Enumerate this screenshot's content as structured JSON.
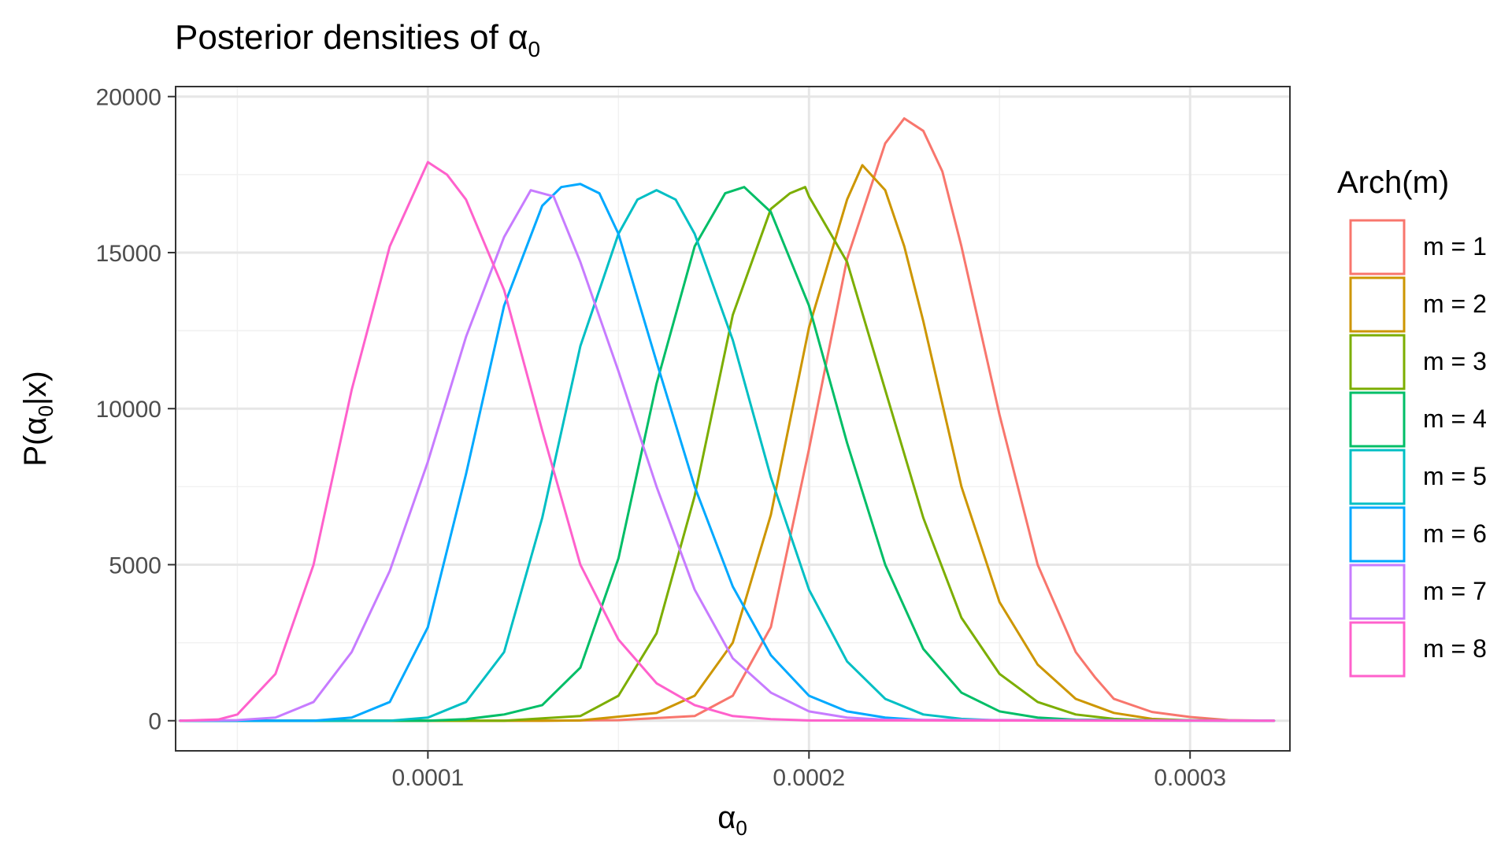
{
  "chart_data": {
    "type": "line",
    "title_main": "Posterior densities of ",
    "title_symbol": "α",
    "title_subscript": "0",
    "xlabel_symbol": "α",
    "xlabel_subscript": "0",
    "ylabel_prefix": "P(",
    "ylabel_symbol": "α",
    "ylabel_subscript": "0",
    "ylabel_suffix": "|x)",
    "xlim": [
      3.38e-05,
      0.0003262
    ],
    "ylim": [
      -965,
      20320
    ],
    "x_ticks": [
      {
        "value": 0.0001,
        "label": "0.0001"
      },
      {
        "value": 0.0002,
        "label": "0.0002"
      },
      {
        "value": 0.0003,
        "label": "0.0003"
      }
    ],
    "x_minor_ticks": [
      5e-05,
      0.00015,
      0.00025
    ],
    "y_ticks": [
      {
        "value": 0,
        "label": "0"
      },
      {
        "value": 5000,
        "label": "5000"
      },
      {
        "value": 10000,
        "label": "10000"
      },
      {
        "value": 15000,
        "label": "15000"
      },
      {
        "value": 20000,
        "label": "20000"
      }
    ],
    "y_minor_ticks": [
      2500,
      7500,
      12500,
      17500
    ],
    "grid": true,
    "legend": {
      "title": "Arch(m)",
      "position": "right"
    },
    "series": [
      {
        "name": "m = 1",
        "color": "#F8766D",
        "points": [
          [
            3.5e-05,
            0
          ],
          [
            0.00013,
            0
          ],
          [
            0.00015,
            20
          ],
          [
            0.00017,
            150
          ],
          [
            0.00018,
            800
          ],
          [
            0.00019,
            3000
          ],
          [
            0.0002,
            8700
          ],
          [
            0.00021,
            14800
          ],
          [
            0.00022,
            18500
          ],
          [
            0.000225,
            19300
          ],
          [
            0.00023,
            18900
          ],
          [
            0.000235,
            17600
          ],
          [
            0.00024,
            15200
          ],
          [
            0.00025,
            9800
          ],
          [
            0.00026,
            5000
          ],
          [
            0.00027,
            2200
          ],
          [
            0.000275,
            1400
          ],
          [
            0.00028,
            700
          ],
          [
            0.00029,
            280
          ],
          [
            0.0003,
            120
          ],
          [
            0.00031,
            20
          ],
          [
            0.000322,
            0
          ]
        ]
      },
      {
        "name": "m = 2",
        "color": "#CD9600",
        "points": [
          [
            3.5e-05,
            0
          ],
          [
            0.00013,
            0
          ],
          [
            0.00014,
            10
          ],
          [
            0.00016,
            250
          ],
          [
            0.00017,
            800
          ],
          [
            0.00018,
            2500
          ],
          [
            0.00019,
            6600
          ],
          [
            0.0002,
            12600
          ],
          [
            0.00021,
            16700
          ],
          [
            0.000214,
            17800
          ],
          [
            0.00022,
            17000
          ],
          [
            0.000225,
            15200
          ],
          [
            0.00023,
            12800
          ],
          [
            0.00024,
            7500
          ],
          [
            0.00025,
            3800
          ],
          [
            0.00026,
            1800
          ],
          [
            0.00027,
            700
          ],
          [
            0.00028,
            250
          ],
          [
            0.00029,
            60
          ],
          [
            0.0003,
            10
          ],
          [
            0.000322,
            0
          ]
        ]
      },
      {
        "name": "m = 3",
        "color": "#7CAE00",
        "points": [
          [
            3.5e-05,
            0
          ],
          [
            0.00012,
            0
          ],
          [
            0.00014,
            150
          ],
          [
            0.00015,
            800
          ],
          [
            0.00016,
            2800
          ],
          [
            0.00017,
            7200
          ],
          [
            0.00018,
            13000
          ],
          [
            0.00019,
            16400
          ],
          [
            0.000195,
            16900
          ],
          [
            0.000199,
            17100
          ],
          [
            0.0002,
            16800
          ],
          [
            0.00021,
            14700
          ],
          [
            0.00022,
            10600
          ],
          [
            0.00023,
            6500
          ],
          [
            0.00024,
            3300
          ],
          [
            0.00025,
            1500
          ],
          [
            0.00026,
            600
          ],
          [
            0.00027,
            200
          ],
          [
            0.00028,
            60
          ],
          [
            0.00029,
            10
          ],
          [
            0.000322,
            0
          ]
        ]
      },
      {
        "name": "m = 4",
        "color": "#00BE67",
        "points": [
          [
            3.5e-05,
            0
          ],
          [
            0.0001,
            0
          ],
          [
            0.00011,
            50
          ],
          [
            0.00012,
            200
          ],
          [
            0.00013,
            500
          ],
          [
            0.00014,
            1700
          ],
          [
            0.00015,
            5200
          ],
          [
            0.00016,
            10800
          ],
          [
            0.00017,
            15200
          ],
          [
            0.000178,
            16900
          ],
          [
            0.000183,
            17100
          ],
          [
            0.00019,
            16300
          ],
          [
            0.0002,
            13300
          ],
          [
            0.00021,
            8900
          ],
          [
            0.00022,
            5000
          ],
          [
            0.00023,
            2300
          ],
          [
            0.00024,
            900
          ],
          [
            0.00025,
            300
          ],
          [
            0.00026,
            100
          ],
          [
            0.00027,
            30
          ],
          [
            0.000322,
            0
          ]
        ]
      },
      {
        "name": "m = 5",
        "color": "#00BFC4",
        "points": [
          [
            3.5e-05,
            0
          ],
          [
            9e-05,
            0
          ],
          [
            0.0001,
            100
          ],
          [
            0.00011,
            600
          ],
          [
            0.00012,
            2200
          ],
          [
            0.00013,
            6500
          ],
          [
            0.00014,
            12000
          ],
          [
            0.00015,
            15600
          ],
          [
            0.000155,
            16700
          ],
          [
            0.00016,
            17000
          ],
          [
            0.000165,
            16700
          ],
          [
            0.00017,
            15600
          ],
          [
            0.00018,
            12200
          ],
          [
            0.00019,
            7800
          ],
          [
            0.0002,
            4200
          ],
          [
            0.00021,
            1900
          ],
          [
            0.00022,
            700
          ],
          [
            0.00023,
            200
          ],
          [
            0.00024,
            60
          ],
          [
            0.00025,
            10
          ],
          [
            0.000322,
            0
          ]
        ]
      },
      {
        "name": "m = 6",
        "color": "#00A9FF",
        "points": [
          [
            3.5e-05,
            0
          ],
          [
            7e-05,
            0
          ],
          [
            8e-05,
            100
          ],
          [
            9e-05,
            600
          ],
          [
            0.0001,
            3000
          ],
          [
            0.00011,
            7900
          ],
          [
            0.00012,
            13300
          ],
          [
            0.00013,
            16500
          ],
          [
            0.000135,
            17100
          ],
          [
            0.00014,
            17200
          ],
          [
            0.000145,
            16900
          ],
          [
            0.00015,
            15600
          ],
          [
            0.00016,
            11500
          ],
          [
            0.00017,
            7500
          ],
          [
            0.00018,
            4300
          ],
          [
            0.00019,
            2100
          ],
          [
            0.0002,
            800
          ],
          [
            0.00021,
            300
          ],
          [
            0.00022,
            100
          ],
          [
            0.00023,
            20
          ],
          [
            0.000322,
            0
          ]
        ]
      },
      {
        "name": "m = 7",
        "color": "#C77CFF",
        "points": [
          [
            3.5e-05,
            0
          ],
          [
            5e-05,
            20
          ],
          [
            6e-05,
            100
          ],
          [
            7e-05,
            600
          ],
          [
            8e-05,
            2200
          ],
          [
            9e-05,
            4800
          ],
          [
            0.0001,
            8300
          ],
          [
            0.00011,
            12300
          ],
          [
            0.00012,
            15500
          ],
          [
            0.000127,
            17000
          ],
          [
            0.000133,
            16800
          ],
          [
            0.00014,
            14700
          ],
          [
            0.00015,
            11200
          ],
          [
            0.00016,
            7500
          ],
          [
            0.00017,
            4200
          ],
          [
            0.00018,
            2000
          ],
          [
            0.00019,
            900
          ],
          [
            0.0002,
            300
          ],
          [
            0.00021,
            100
          ],
          [
            0.00022,
            30
          ],
          [
            0.000322,
            0
          ]
        ]
      },
      {
        "name": "m = 8",
        "color": "#FF61CC",
        "points": [
          [
            3.5e-05,
            0
          ],
          [
            4.5e-05,
            40
          ],
          [
            5e-05,
            200
          ],
          [
            6e-05,
            1500
          ],
          [
            7e-05,
            5000
          ],
          [
            8e-05,
            10600
          ],
          [
            9e-05,
            15200
          ],
          [
            0.0001,
            17900
          ],
          [
            0.000105,
            17500
          ],
          [
            0.00011,
            16700
          ],
          [
            0.00012,
            13800
          ],
          [
            0.00013,
            9300
          ],
          [
            0.00014,
            5000
          ],
          [
            0.00015,
            2600
          ],
          [
            0.00016,
            1200
          ],
          [
            0.00017,
            500
          ],
          [
            0.00018,
            150
          ],
          [
            0.00019,
            50
          ],
          [
            0.0002,
            10
          ],
          [
            0.000322,
            0
          ]
        ]
      }
    ]
  }
}
